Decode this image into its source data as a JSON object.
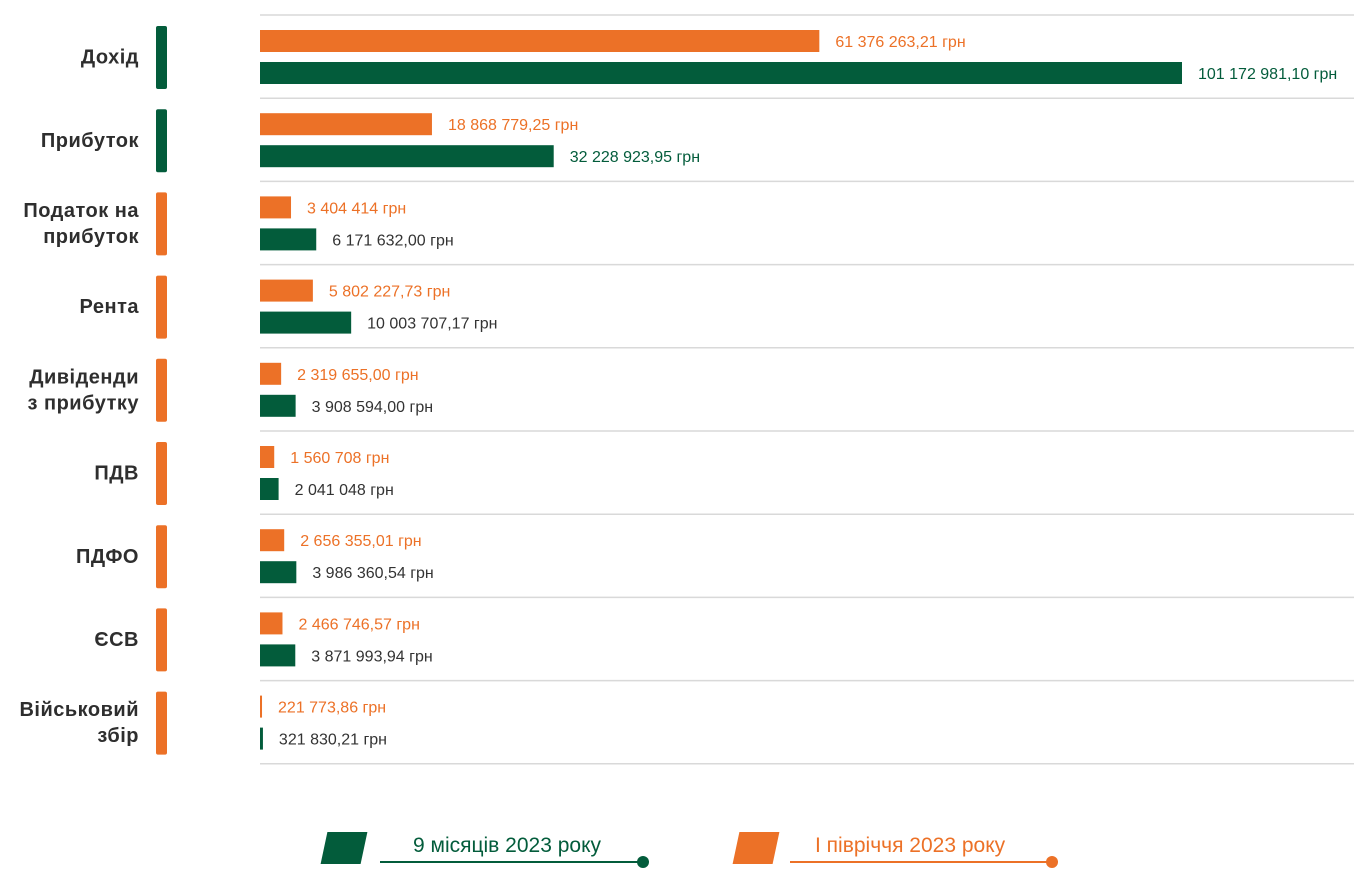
{
  "colors": {
    "green": "#035c3b",
    "orange": "#ec7127",
    "label_dark": "#2e2e2e",
    "grid": "#d9d9d9"
  },
  "chart_data": {
    "type": "bar",
    "orientation": "horizontal",
    "categories": [
      [
        "Дохід"
      ],
      [
        "Прибуток"
      ],
      [
        "Податок на",
        "прибуток"
      ],
      [
        "Рента"
      ],
      [
        "Дивіденди",
        "з прибутку"
      ],
      [
        "ПДВ"
      ],
      [
        "ПДФО"
      ],
      [
        "ЄСВ"
      ],
      [
        "Військовий",
        "збір"
      ]
    ],
    "category_marker_colors": [
      "#035c3b",
      "#035c3b",
      "#ec7127",
      "#ec7127",
      "#ec7127",
      "#ec7127",
      "#ec7127",
      "#ec7127",
      "#ec7127"
    ],
    "series": [
      {
        "name": "I півріччя 2023 року",
        "color": "#ec7127",
        "values": [
          61376263.21,
          18868779.25,
          3404414,
          5802227.73,
          2319655.0,
          1560708,
          2656355.01,
          2466746.57,
          221773.86
        ],
        "labels": [
          "61 376 263,21 грн",
          "18 868 779,25 грн",
          "3 404 414 грн",
          "5 802 227,73 грн",
          "2 319 655,00 грн",
          "1 560 708 грн",
          "2 656 355,01 грн",
          "2 466 746,57 грн",
          "221 773,86 грн"
        ]
      },
      {
        "name": "9 місяців 2023 року",
        "color": "#035c3b",
        "values": [
          101172981.1,
          32228923.95,
          6171632.0,
          10003707.17,
          3908594.0,
          2041048,
          3986360.54,
          3871993.94,
          321830.21
        ],
        "labels": [
          "101 172 981,10 грн",
          "32 228 923,95 грн",
          "6 171 632,00 грн",
          "10 003 707,17 грн",
          "3 908 594,00 грн",
          "2 041 048 грн",
          "3 986 360,54 грн",
          "3 871 993,94 грн",
          "321 830,21 грн"
        ]
      }
    ],
    "legend_position": "bottom-center"
  },
  "legend": {
    "nine_months": "9 місяців 2023 року",
    "half_year": "I півріччя 2023 року"
  }
}
